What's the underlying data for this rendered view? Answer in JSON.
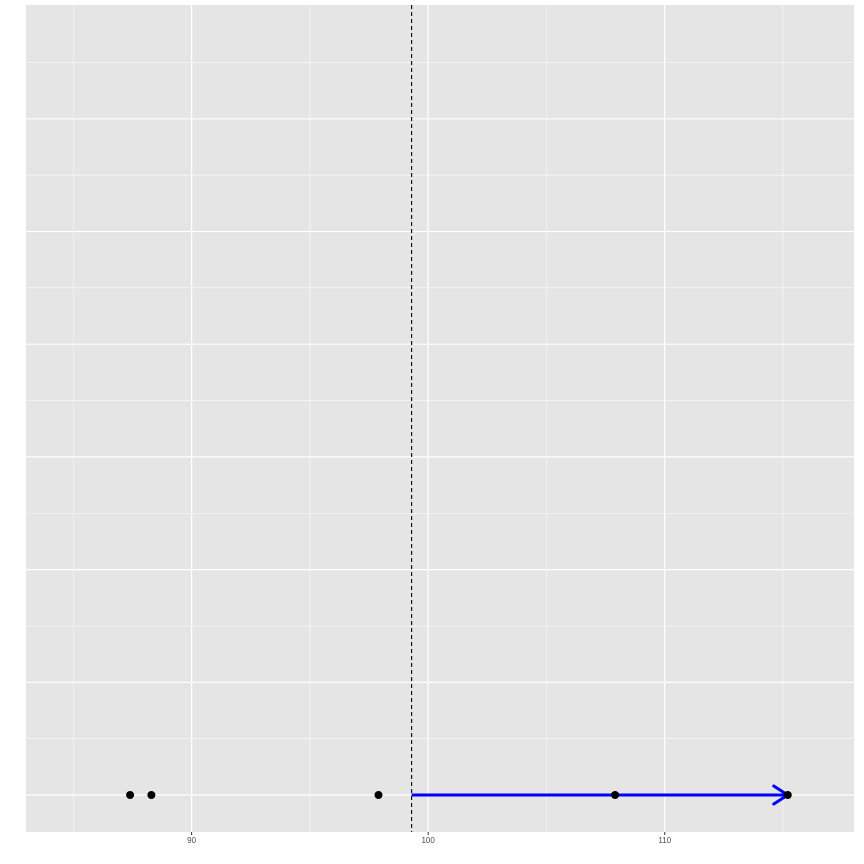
{
  "chart_data": {
    "type": "scatter",
    "title": "",
    "xlabel": "",
    "ylabel": "",
    "xlim": [
      83,
      118
    ],
    "ylim": [
      0,
      1
    ],
    "x_ticks": [
      90,
      100,
      110
    ],
    "x_tick_labels": [
      "90",
      "100",
      "110"
    ],
    "x_minor_ticks": [
      85,
      95,
      105,
      115
    ],
    "points": [
      {
        "x": 87.4,
        "y": 0.0
      },
      {
        "x": 88.3,
        "y": 0.0
      },
      {
        "x": 97.9,
        "y": 0.0
      },
      {
        "x": 107.9,
        "y": 0.0
      },
      {
        "x": 115.2,
        "y": 0.0
      }
    ],
    "vline": {
      "x": 99.3,
      "style": "dashed",
      "color": "#000000"
    },
    "arrow": {
      "x_start": 99.3,
      "x_end": 115.2,
      "y": 0.0,
      "color": "#0000ff"
    },
    "grid": true,
    "panel_background": "#e5e5e5",
    "grid_color": "#ffffff",
    "point_color": "#000000"
  }
}
